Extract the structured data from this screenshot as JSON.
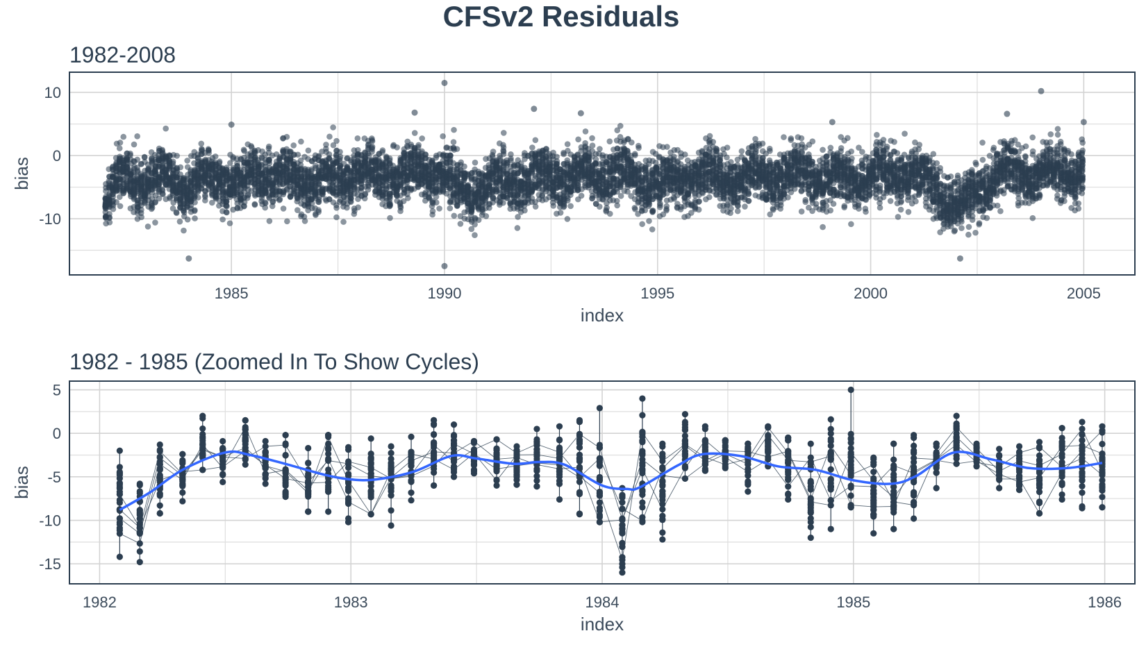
{
  "page": {
    "title": "CFSv2 Residuals"
  },
  "colors": {
    "points": "#2c3e50",
    "smooth": "#3366ff",
    "grid": "#d3d3d3",
    "frame": "#2c3e50",
    "text": "#3b4a5a"
  },
  "chart_data": [
    {
      "type": "scatter",
      "title": "1982-2008",
      "xlabel": "index",
      "ylabel": "bias",
      "xlim": [
        1981.2,
        2006.2
      ],
      "ylim": [
        -18.9,
        13.2
      ],
      "x_ticks": [
        1985,
        1990,
        1995,
        2000,
        2005
      ],
      "y_ticks": [
        -10,
        0,
        10
      ],
      "grid": true,
      "point_alpha": 0.55,
      "x_range_of_points": [
        1982.05,
        2005.0
      ],
      "series": [
        {
          "monthly_mean_bias": [
            {
              "x": 1982.1,
              "y": -7.8
            },
            {
              "x": 1982.3,
              "y": -4.8
            },
            {
              "x": 1982.5,
              "y": -2.2
            },
            {
              "x": 1982.8,
              "y": -3.8
            },
            {
              "x": 1983.2,
              "y": -4.9
            },
            {
              "x": 1983.5,
              "y": -2.6
            },
            {
              "x": 1983.9,
              "y": -5.2
            },
            {
              "x": 1984.1,
              "y": -6.3
            },
            {
              "x": 1984.5,
              "y": -2.4
            },
            {
              "x": 1985.2,
              "y": -5.6
            },
            {
              "x": 1985.5,
              "y": -2.2
            },
            {
              "x": 1986.0,
              "y": -3.6
            },
            {
              "x": 1987.0,
              "y": -3.8
            },
            {
              "x": 1988.0,
              "y": -3.0
            },
            {
              "x": 1989.0,
              "y": -3.2
            },
            {
              "x": 1990.0,
              "y": -2.4
            },
            {
              "x": 1990.3,
              "y": -6.2
            },
            {
              "x": 1991.0,
              "y": -4.5
            },
            {
              "x": 1992.0,
              "y": -3.6
            },
            {
              "x": 1993.0,
              "y": -3.2
            },
            {
              "x": 1994.0,
              "y": -2.6
            },
            {
              "x": 1995.0,
              "y": -4.8
            },
            {
              "x": 1996.0,
              "y": -3.2
            },
            {
              "x": 1997.0,
              "y": -3.6
            },
            {
              "x": 1998.0,
              "y": -3.2
            },
            {
              "x": 1999.0,
              "y": -3.6
            },
            {
              "x": 2000.0,
              "y": -3.2
            },
            {
              "x": 2001.0,
              "y": -2.8
            },
            {
              "x": 2002.1,
              "y": -8.5
            },
            {
              "x": 2003.0,
              "y": -2.6
            },
            {
              "x": 2004.0,
              "y": -3.0
            },
            {
              "x": 2005.0,
              "y": -2.6
            }
          ],
          "notable_points": [
            {
              "x": 1990.0,
              "y": 11.5
            },
            {
              "x": 1990.0,
              "y": -17.5
            },
            {
              "x": 2004.0,
              "y": 10.2
            },
            {
              "x": 1992.1,
              "y": 7.4
            },
            {
              "x": 1989.3,
              "y": 6.8
            },
            {
              "x": 1993.2,
              "y": 6.7
            },
            {
              "x": 2003.2,
              "y": 6.6
            },
            {
              "x": 1984.0,
              "y": -16.3
            },
            {
              "x": 2002.1,
              "y": -16.3
            },
            {
              "x": 1999.1,
              "y": 5.3
            },
            {
              "x": 2005.0,
              "y": 5.3
            },
            {
              "x": 1985.0,
              "y": 4.9
            }
          ]
        }
      ]
    },
    {
      "type": "scatter",
      "title": "1982 - 1985 (Zoomed In To Show Cycles)",
      "xlabel": "index",
      "ylabel": "bias",
      "xlim": [
        1981.88,
        1986.12
      ],
      "ylim": [
        -17.3,
        6.0
      ],
      "x_ticks": [
        1982,
        1983,
        1984,
        1985,
        1986
      ],
      "y_ticks": [
        -15,
        -10,
        -5,
        0,
        5
      ],
      "grid": true,
      "months": [
        {
          "x": 1982.08,
          "min": -14.2,
          "max": -2.0,
          "mean": -8.0
        },
        {
          "x": 1982.16,
          "min": -14.8,
          "max": -5.8,
          "mean": -9.5
        },
        {
          "x": 1982.24,
          "min": -9.2,
          "max": -1.3,
          "mean": -5.6
        },
        {
          "x": 1982.33,
          "min": -7.8,
          "max": -2.4,
          "mean": -4.8
        },
        {
          "x": 1982.41,
          "min": -4.2,
          "max": 2.0,
          "mean": -1.8
        },
        {
          "x": 1982.49,
          "min": -5.6,
          "max": -0.9,
          "mean": -3.0
        },
        {
          "x": 1982.58,
          "min": -3.6,
          "max": 1.5,
          "mean": -1.2
        },
        {
          "x": 1982.66,
          "min": -5.8,
          "max": -0.9,
          "mean": -3.5
        },
        {
          "x": 1982.74,
          "min": -7.3,
          "max": -0.2,
          "mean": -4.2
        },
        {
          "x": 1982.83,
          "min": -9.0,
          "max": -1.7,
          "mean": -5.4
        },
        {
          "x": 1982.91,
          "min": -9.0,
          "max": -0.2,
          "mean": -3.9
        },
        {
          "x": 1982.99,
          "min": -10.2,
          "max": -1.6,
          "mean": -6.3
        },
        {
          "x": 1983.08,
          "min": -9.3,
          "max": -0.6,
          "mean": -4.8
        },
        {
          "x": 1983.16,
          "min": -10.6,
          "max": -1.5,
          "mean": -5.0
        },
        {
          "x": 1983.24,
          "min": -7.7,
          "max": -0.4,
          "mean": -4.3
        },
        {
          "x": 1983.33,
          "min": -6.0,
          "max": 1.5,
          "mean": -2.3
        },
        {
          "x": 1983.41,
          "min": -5.0,
          "max": 1.0,
          "mean": -2.2
        },
        {
          "x": 1983.49,
          "min": -4.6,
          "max": -0.9,
          "mean": -2.7
        },
        {
          "x": 1983.58,
          "min": -6.0,
          "max": -0.7,
          "mean": -3.2
        },
        {
          "x": 1983.66,
          "min": -5.9,
          "max": -1.5,
          "mean": -3.8
        },
        {
          "x": 1983.74,
          "min": -6.1,
          "max": 0.5,
          "mean": -3.0
        },
        {
          "x": 1983.83,
          "min": -7.6,
          "max": 0.8,
          "mean": -3.2
        },
        {
          "x": 1983.91,
          "min": -9.3,
          "max": 1.5,
          "mean": -4.2
        },
        {
          "x": 1983.99,
          "min": -10.2,
          "max": 2.9,
          "mean": -6.6
        },
        {
          "x": 1984.08,
          "min": -16.0,
          "max": -6.3,
          "mean": -11.2
        },
        {
          "x": 1984.16,
          "min": -10.2,
          "max": 4.0,
          "mean": -4.2
        },
        {
          "x": 1984.24,
          "min": -12.2,
          "max": -1.2,
          "mean": -5.5
        },
        {
          "x": 1984.33,
          "min": -5.2,
          "max": 2.2,
          "mean": -1.8
        },
        {
          "x": 1984.41,
          "min": -4.3,
          "max": 0.8,
          "mean": -2.3
        },
        {
          "x": 1984.49,
          "min": -4.0,
          "max": -0.8,
          "mean": -2.3
        },
        {
          "x": 1984.58,
          "min": -6.7,
          "max": -1.2,
          "mean": -3.3
        },
        {
          "x": 1984.66,
          "min": -3.8,
          "max": 0.8,
          "mean": -1.6
        },
        {
          "x": 1984.74,
          "min": -7.6,
          "max": -0.5,
          "mean": -3.5
        },
        {
          "x": 1984.83,
          "min": -12.0,
          "max": -1.2,
          "mean": -6.0
        },
        {
          "x": 1984.91,
          "min": -11.0,
          "max": 1.6,
          "mean": -5.0
        },
        {
          "x": 1984.99,
          "min": -8.5,
          "max": 5.0,
          "mean": -3.0
        },
        {
          "x": 1985.08,
          "min": -11.5,
          "max": -2.8,
          "mean": -6.7
        },
        {
          "x": 1985.16,
          "min": -11.0,
          "max": -1.2,
          "mean": -6.0
        },
        {
          "x": 1985.24,
          "min": -9.8,
          "max": -0.2,
          "mean": -4.5
        },
        {
          "x": 1985.33,
          "min": -6.3,
          "max": -1.2,
          "mean": -3.0
        },
        {
          "x": 1985.41,
          "min": -3.5,
          "max": 2.0,
          "mean": -1.0
        },
        {
          "x": 1985.49,
          "min": -3.8,
          "max": -1.2,
          "mean": -2.4
        },
        {
          "x": 1985.58,
          "min": -6.3,
          "max": -1.8,
          "mean": -4.0
        },
        {
          "x": 1985.66,
          "min": -6.5,
          "max": -1.5,
          "mean": -4.2
        },
        {
          "x": 1985.74,
          "min": -9.2,
          "max": -1.0,
          "mean": -4.7
        },
        {
          "x": 1985.83,
          "min": -7.6,
          "max": 0.6,
          "mean": -3.5
        },
        {
          "x": 1985.91,
          "min": -8.6,
          "max": 1.3,
          "mean": -3.3
        },
        {
          "x": 1985.99,
          "min": -8.5,
          "max": 0.8,
          "mean": -3.8
        }
      ],
      "smooth_curve": [
        {
          "x": 1982.08,
          "y": -8.8
        },
        {
          "x": 1982.2,
          "y": -6.8
        },
        {
          "x": 1982.33,
          "y": -4.2
        },
        {
          "x": 1982.5,
          "y": -2.2
        },
        {
          "x": 1982.6,
          "y": -2.5
        },
        {
          "x": 1982.75,
          "y": -3.6
        },
        {
          "x": 1982.9,
          "y": -4.8
        },
        {
          "x": 1983.0,
          "y": -5.3
        },
        {
          "x": 1983.1,
          "y": -5.3
        },
        {
          "x": 1983.25,
          "y": -4.4
        },
        {
          "x": 1983.4,
          "y": -2.6
        },
        {
          "x": 1983.5,
          "y": -2.9
        },
        {
          "x": 1983.65,
          "y": -3.5
        },
        {
          "x": 1983.75,
          "y": -3.3
        },
        {
          "x": 1983.85,
          "y": -3.6
        },
        {
          "x": 1984.0,
          "y": -6.0
        },
        {
          "x": 1984.1,
          "y": -6.4
        },
        {
          "x": 1984.15,
          "y": -6.2
        },
        {
          "x": 1984.3,
          "y": -3.7
        },
        {
          "x": 1984.4,
          "y": -2.4
        },
        {
          "x": 1984.55,
          "y": -2.6
        },
        {
          "x": 1984.7,
          "y": -3.8
        },
        {
          "x": 1984.85,
          "y": -4.2
        },
        {
          "x": 1985.0,
          "y": -5.4
        },
        {
          "x": 1985.15,
          "y": -5.8
        },
        {
          "x": 1985.25,
          "y": -4.9
        },
        {
          "x": 1985.4,
          "y": -2.2
        },
        {
          "x": 1985.55,
          "y": -3.0
        },
        {
          "x": 1985.7,
          "y": -4.0
        },
        {
          "x": 1985.85,
          "y": -4.0
        },
        {
          "x": 1985.99,
          "y": -3.4
        }
      ]
    }
  ]
}
